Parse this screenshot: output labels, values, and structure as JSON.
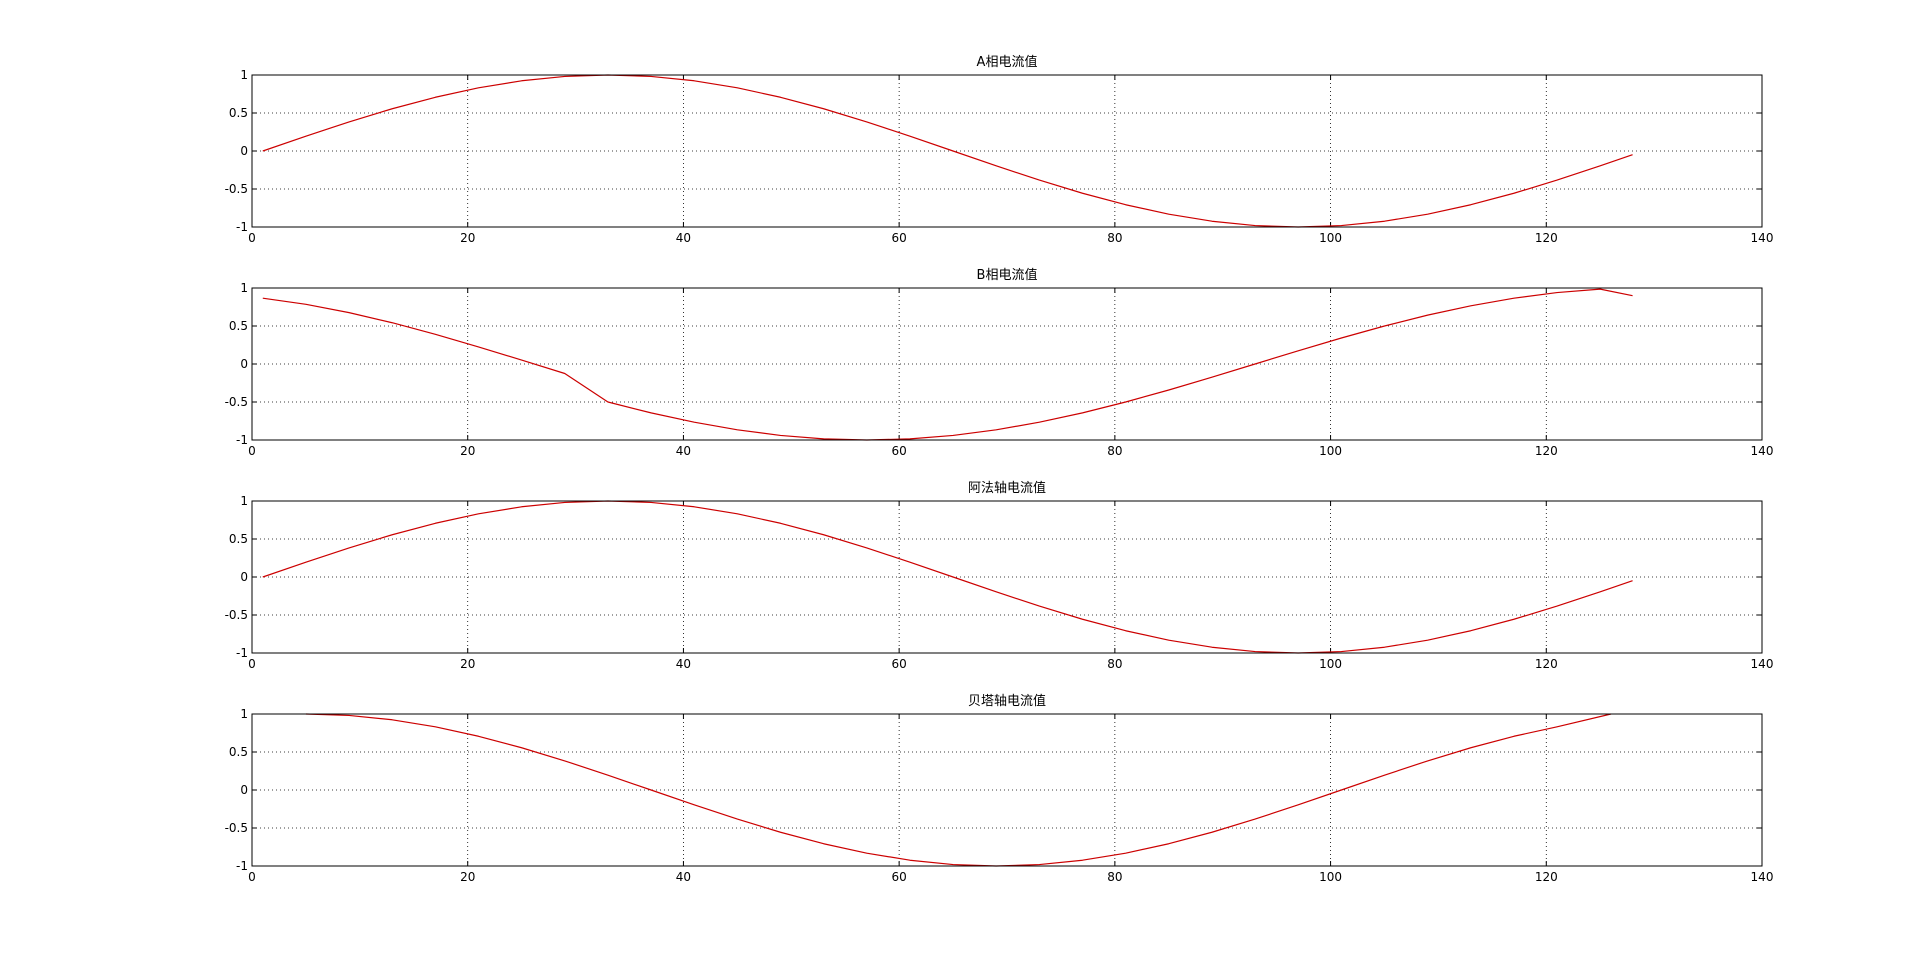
{
  "figure": {
    "background": "#ffffff",
    "line_color": "#cc0000",
    "axes_color": "#000000",
    "grid_color": "#000000"
  },
  "chart_data": [
    {
      "type": "line",
      "title": "A相电流值",
      "xlabel": "",
      "ylabel": "",
      "xlim": [
        0,
        140
      ],
      "ylim": [
        -1,
        1
      ],
      "xticks": [
        0,
        20,
        40,
        60,
        80,
        100,
        120,
        140
      ],
      "yticks": [
        -1,
        -0.5,
        0,
        0.5,
        1
      ],
      "xtick_labels": [
        "0",
        "20",
        "40",
        "60",
        "80",
        "100",
        "120",
        "140"
      ],
      "ytick_labels": [
        "-1",
        "-0.5",
        "0",
        "0.5",
        "1"
      ],
      "grid": true,
      "grid_style": "dotted",
      "series": [
        {
          "color": "#cc0000",
          "x": [
            1,
            5,
            9,
            13,
            17,
            21,
            25,
            29,
            33,
            37,
            41,
            45,
            49,
            53,
            57,
            61,
            65,
            69,
            73,
            77,
            81,
            85,
            89,
            93,
            97,
            101,
            105,
            109,
            113,
            117,
            121,
            125,
            128
          ],
          "y": [
            0.0,
            0.195,
            0.383,
            0.556,
            0.707,
            0.831,
            0.924,
            0.981,
            1.0,
            0.981,
            0.924,
            0.831,
            0.707,
            0.556,
            0.383,
            0.195,
            0.0,
            -0.195,
            -0.383,
            -0.556,
            -0.707,
            -0.831,
            -0.924,
            -0.981,
            -1.0,
            -0.981,
            -0.924,
            -0.831,
            -0.707,
            -0.556,
            -0.383,
            -0.195,
            -0.049
          ]
        }
      ]
    },
    {
      "type": "line",
      "title": "B相电流值",
      "xlabel": "",
      "ylabel": "",
      "xlim": [
        0,
        140
      ],
      "ylim": [
        -1,
        1
      ],
      "xticks": [
        0,
        20,
        40,
        60,
        80,
        100,
        120,
        140
      ],
      "yticks": [
        -1,
        -0.5,
        0,
        0.5,
        1
      ],
      "xtick_labels": [
        "0",
        "20",
        "40",
        "60",
        "80",
        "100",
        "120",
        "140"
      ],
      "ytick_labels": [
        "-1",
        "-0.5",
        "0",
        "0.5",
        "1"
      ],
      "grid": true,
      "grid_style": "dotted",
      "series": [
        {
          "color": "#cc0000",
          "x": [
            1,
            5,
            9,
            13,
            17,
            21,
            25,
            29,
            33,
            37,
            41,
            45,
            49,
            53,
            57,
            61,
            65,
            69,
            73,
            77,
            81,
            85,
            89,
            93,
            97,
            101,
            105,
            109,
            113,
            117,
            121,
            125,
            128
          ],
          "y": [
            0.866,
            0.785,
            0.676,
            0.543,
            0.391,
            0.225,
            0.052,
            -0.125,
            -0.5,
            -0.643,
            -0.766,
            -0.866,
            -0.94,
            -0.985,
            -1.0,
            -0.985,
            -0.94,
            -0.866,
            -0.766,
            -0.643,
            -0.5,
            -0.342,
            -0.174,
            0.0,
            0.174,
            0.342,
            0.5,
            0.643,
            0.766,
            0.866,
            0.94,
            0.985,
            0.899
          ]
        }
      ]
    },
    {
      "type": "line",
      "title": "阿法轴电流值",
      "xlabel": "",
      "ylabel": "",
      "xlim": [
        0,
        140
      ],
      "ylim": [
        -1,
        1
      ],
      "xticks": [
        0,
        20,
        40,
        60,
        80,
        100,
        120,
        140
      ],
      "yticks": [
        -1,
        -0.5,
        0,
        0.5,
        1
      ],
      "xtick_labels": [
        "0",
        "20",
        "40",
        "60",
        "80",
        "100",
        "120",
        "140"
      ],
      "ytick_labels": [
        "-1",
        "-0.5",
        "0",
        "0.5",
        "1"
      ],
      "grid": true,
      "grid_style": "dotted",
      "series": [
        {
          "color": "#cc0000",
          "x": [
            1,
            5,
            9,
            13,
            17,
            21,
            25,
            29,
            33,
            37,
            41,
            45,
            49,
            53,
            57,
            61,
            65,
            69,
            73,
            77,
            81,
            85,
            89,
            93,
            97,
            101,
            105,
            109,
            113,
            117,
            121,
            125,
            128
          ],
          "y": [
            0.0,
            0.195,
            0.383,
            0.556,
            0.707,
            0.831,
            0.924,
            0.981,
            1.0,
            0.981,
            0.924,
            0.831,
            0.707,
            0.556,
            0.383,
            0.195,
            0.0,
            -0.195,
            -0.383,
            -0.556,
            -0.707,
            -0.831,
            -0.924,
            -0.981,
            -1.0,
            -0.981,
            -0.924,
            -0.831,
            -0.707,
            -0.556,
            -0.383,
            -0.195,
            -0.049
          ]
        }
      ]
    },
    {
      "type": "line",
      "title": "贝塔轴电流值",
      "xlabel": "",
      "ylabel": "",
      "xlim": [
        0,
        140
      ],
      "ylim": [
        -1,
        1
      ],
      "xticks": [
        0,
        20,
        40,
        60,
        80,
        100,
        120,
        140
      ],
      "yticks": [
        -1,
        -0.5,
        0,
        0.5,
        1
      ],
      "xtick_labels": [
        "0",
        "20",
        "40",
        "60",
        "80",
        "100",
        "120",
        "140"
      ],
      "ytick_labels": [
        "-1",
        "-0.5",
        "0",
        "0.5",
        "1"
      ],
      "grid": true,
      "grid_style": "dotted",
      "series": [
        {
          "color": "#cc0000",
          "x": [
            5,
            9,
            13,
            17,
            21,
            25,
            29,
            33,
            37,
            41,
            45,
            49,
            53,
            57,
            61,
            65,
            69,
            73,
            77,
            81,
            85,
            89,
            93,
            97,
            101,
            105,
            109,
            113,
            117,
            121,
            126
          ],
          "y": [
            1.0,
            0.981,
            0.924,
            0.831,
            0.707,
            0.556,
            0.383,
            0.195,
            0.0,
            -0.195,
            -0.383,
            -0.556,
            -0.707,
            -0.831,
            -0.924,
            -0.981,
            -1.0,
            -0.981,
            -0.924,
            -0.831,
            -0.707,
            -0.556,
            -0.383,
            -0.195,
            0.0,
            0.195,
            0.383,
            0.556,
            0.707,
            0.831,
            1.0
          ]
        }
      ]
    }
  ]
}
